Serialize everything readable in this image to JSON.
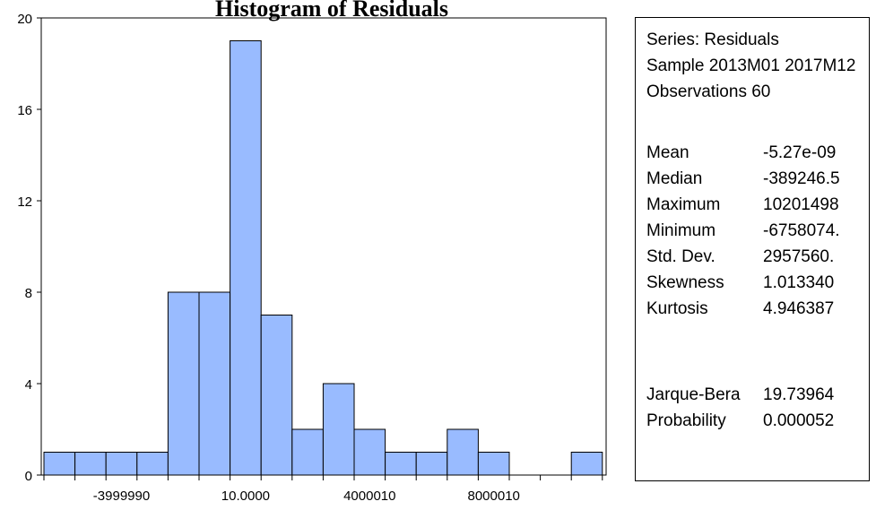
{
  "chart_data": {
    "type": "bar",
    "title": "Histogram of Residuals",
    "bins_count": [
      1,
      1,
      1,
      1,
      8,
      8,
      19,
      7,
      2,
      4,
      2,
      1,
      1,
      2,
      1,
      0,
      0,
      1
    ],
    "ylim": [
      0,
      20
    ],
    "yticks": [
      "0",
      "4",
      "8",
      "12",
      "16",
      "20"
    ],
    "xtick_labels": [
      "-3999990",
      "10.0000",
      "4000010",
      "8000010"
    ],
    "bar_color": "#99bbff",
    "grid": false
  },
  "stats": {
    "series": "Series: Residuals",
    "sample": "Sample 2013M01 2017M12",
    "observations": "Observations 60",
    "rows": [
      {
        "label": "Mean",
        "value": "-5.27e-09"
      },
      {
        "label": "Median",
        "value": "-389246.5"
      },
      {
        "label": "Maximum",
        "value": " 10201498"
      },
      {
        "label": "Minimum",
        "value": "-6758074."
      },
      {
        "label": "Std. Dev.",
        "value": " 2957560."
      },
      {
        "label": "Skewness",
        "value": " 1.013340"
      },
      {
        "label": "Kurtosis",
        "value": " 4.946387"
      }
    ],
    "tests": [
      {
        "label": "Jarque-Bera",
        "value": " 19.73964"
      },
      {
        "label": "Probability",
        "value": " 0.000052"
      }
    ]
  }
}
